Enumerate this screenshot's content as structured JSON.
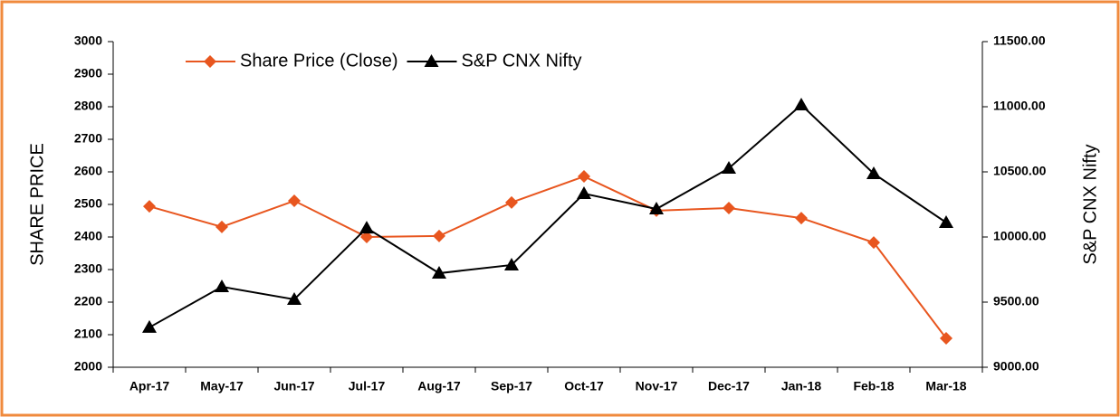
{
  "chart_data": {
    "type": "line",
    "categories": [
      "Apr-17",
      "May-17",
      "Jun-17",
      "Jul-17",
      "Aug-17",
      "Sep-17",
      "Oct-17",
      "Nov-17",
      "Dec-17",
      "Jan-18",
      "Feb-18",
      "Mar-18"
    ],
    "series": [
      {
        "name": "Share Price (Close)",
        "color": "#e8561f",
        "marker": "diamond",
        "values": [
          2494,
          2431,
          2511,
          2400,
          2403,
          2506,
          2586,
          2481,
          2489,
          2458,
          2383,
          2089
        ]
      },
      {
        "name": "S&P CNX Nifty",
        "color": "#000000",
        "marker": "triangle",
        "axis": "y2",
        "values": [
          9306,
          9618,
          9521,
          10069,
          9722,
          9785,
          10333,
          10215,
          10528,
          11014,
          10486,
          10111
        ]
      }
    ],
    "ylabel": "SHARE PRICE",
    "y2label": "S&P CNX Nifty",
    "ylim": [
      2000,
      3000
    ],
    "yticks": [
      2000,
      2100,
      2200,
      2300,
      2400,
      2500,
      2600,
      2700,
      2800,
      2900,
      3000
    ],
    "y2lim": [
      9000,
      11500
    ],
    "y2ticks": [
      {
        "value": 9000,
        "label": "9000.00"
      },
      {
        "value": 9500,
        "label": "9500.00"
      },
      {
        "value": 10000,
        "label": "10000.00"
      },
      {
        "value": 10500,
        "label": "10500.00"
      },
      {
        "value": 11000,
        "label": "11000.00"
      },
      {
        "value": 11500,
        "label": "11500.00"
      }
    ],
    "legend": "top-left",
    "grid": false
  }
}
